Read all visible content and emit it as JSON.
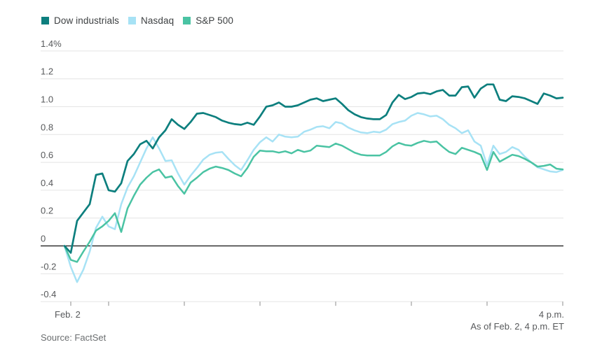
{
  "chart_data": {
    "type": "line",
    "title": "",
    "legend_position": "top-left",
    "grid": true,
    "series": [
      {
        "name": "Dow industrials",
        "color": "#0d7f7e",
        "values": [
          0,
          -0.05,
          0.18,
          0.24,
          0.3,
          0.51,
          0.52,
          0.4,
          0.39,
          0.45,
          0.61,
          0.66,
          0.73,
          0.755,
          0.7,
          0.78,
          0.83,
          0.91,
          0.87,
          0.84,
          0.89,
          0.95,
          0.955,
          0.94,
          0.925,
          0.9,
          0.885,
          0.875,
          0.87,
          0.885,
          0.87,
          0.93,
          1.0,
          1.01,
          1.03,
          1.0,
          1.0,
          1.01,
          1.03,
          1.05,
          1.06,
          1.04,
          1.05,
          1.06,
          1.02,
          0.975,
          0.945,
          0.925,
          0.915,
          0.91,
          0.91,
          0.94,
          1.03,
          1.085,
          1.055,
          1.07,
          1.095,
          1.1,
          1.09,
          1.11,
          1.12,
          1.08,
          1.08,
          1.14,
          1.145,
          1.065,
          1.13,
          1.16,
          1.16,
          1.05,
          1.04,
          1.075,
          1.07,
          1.06,
          1.04,
          1.02,
          1.095,
          1.08,
          1.06,
          1.065
        ]
      },
      {
        "name": "Nasdaq",
        "color": "#a7e2f5",
        "values": [
          0,
          -0.15,
          -0.26,
          -0.17,
          -0.04,
          0.13,
          0.21,
          0.14,
          0.12,
          0.3,
          0.42,
          0.5,
          0.6,
          0.7,
          0.78,
          0.7,
          0.61,
          0.615,
          0.52,
          0.44,
          0.505,
          0.56,
          0.62,
          0.655,
          0.67,
          0.675,
          0.625,
          0.58,
          0.545,
          0.615,
          0.69,
          0.745,
          0.78,
          0.75,
          0.8,
          0.785,
          0.78,
          0.785,
          0.82,
          0.835,
          0.855,
          0.86,
          0.845,
          0.89,
          0.88,
          0.85,
          0.83,
          0.815,
          0.81,
          0.82,
          0.815,
          0.835,
          0.875,
          0.89,
          0.9,
          0.935,
          0.955,
          0.945,
          0.93,
          0.935,
          0.91,
          0.87,
          0.845,
          0.81,
          0.83,
          0.75,
          0.72,
          0.58,
          0.72,
          0.66,
          0.675,
          0.71,
          0.69,
          0.64,
          0.6,
          0.565,
          0.55,
          0.535,
          0.53,
          0.545
        ]
      },
      {
        "name": "S&P 500",
        "color": "#4ac3a3",
        "values": [
          0,
          -0.1,
          -0.115,
          -0.04,
          0.03,
          0.11,
          0.14,
          0.18,
          0.235,
          0.1,
          0.27,
          0.36,
          0.44,
          0.49,
          0.53,
          0.55,
          0.49,
          0.5,
          0.43,
          0.375,
          0.455,
          0.49,
          0.53,
          0.555,
          0.57,
          0.56,
          0.545,
          0.52,
          0.5,
          0.56,
          0.64,
          0.685,
          0.68,
          0.68,
          0.67,
          0.68,
          0.665,
          0.69,
          0.675,
          0.685,
          0.72,
          0.715,
          0.71,
          0.735,
          0.72,
          0.695,
          0.67,
          0.655,
          0.65,
          0.65,
          0.65,
          0.675,
          0.715,
          0.74,
          0.725,
          0.72,
          0.74,
          0.755,
          0.745,
          0.75,
          0.71,
          0.675,
          0.66,
          0.705,
          0.69,
          0.675,
          0.655,
          0.545,
          0.675,
          0.605,
          0.63,
          0.655,
          0.645,
          0.625,
          0.6,
          0.57,
          0.575,
          0.585,
          0.555,
          0.55
        ]
      }
    ],
    "x_axis": {
      "start_label": "Feb. 2",
      "end_label": "4 p.m.",
      "session_start_minute": -5,
      "session_end_minute": 390,
      "tick_minutes": [
        0,
        30,
        90,
        150,
        210,
        270,
        330,
        390
      ]
    },
    "y_axis": {
      "range": [
        -0.4,
        1.4
      ],
      "unit": "%",
      "ticks": [
        {
          "value": 1.4,
          "label": "1.4%"
        },
        {
          "value": 1.2,
          "label": "1.2"
        },
        {
          "value": 1.0,
          "label": "1.0"
        },
        {
          "value": 0.8,
          "label": "0.8"
        },
        {
          "value": 0.6,
          "label": "0.6"
        },
        {
          "value": 0.4,
          "label": "0.4"
        },
        {
          "value": 0.2,
          "label": "0.2"
        },
        {
          "value": 0,
          "label": "0"
        },
        {
          "value": -0.2,
          "label": "-0.2"
        },
        {
          "value": -0.4,
          "label": "-0.4"
        }
      ]
    }
  },
  "footer": {
    "as_of": "As of Feb. 2, 4 p.m. ET",
    "source": "Source: FactSet"
  },
  "style_colors": {
    "gridline": "#e4e4e4",
    "zero_line": "#111111",
    "axis_tick": "#8c8c8c",
    "tick_label": "#57595b",
    "legend_text": "#3d4042"
  }
}
